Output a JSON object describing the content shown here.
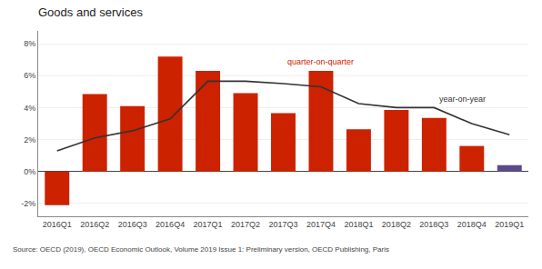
{
  "chart_data": {
    "type": "bar",
    "title": "Goods and services",
    "categories": [
      "2016Q1",
      "2016Q2",
      "2016Q3",
      "2016Q4",
      "2017Q1",
      "2017Q2",
      "2017Q3",
      "2017Q4",
      "2018Q1",
      "2018Q2",
      "2018Q3",
      "2018Q4",
      "2019Q1"
    ],
    "series": [
      {
        "name": "quarter-on-quarter",
        "type": "bar",
        "color": "#cc2200",
        "colors": [
          "#cc2200",
          "#cc2200",
          "#cc2200",
          "#cc2200",
          "#cc2200",
          "#cc2200",
          "#cc2200",
          "#cc2200",
          "#cc2200",
          "#cc2200",
          "#cc2200",
          "#cc2200",
          "#5b4a8a"
        ],
        "values": [
          -2.1,
          4.85,
          4.1,
          7.2,
          6.3,
          4.9,
          3.65,
          6.3,
          2.65,
          3.85,
          3.35,
          1.6,
          0.4
        ]
      },
      {
        "name": "year-on-year",
        "type": "line",
        "color": "#333333",
        "values": [
          1.3,
          2.1,
          2.55,
          3.3,
          5.65,
          5.65,
          5.5,
          5.3,
          4.25,
          4.0,
          4.0,
          3.0,
          2.3
        ]
      }
    ],
    "ylim": [
      -2.8,
      8.8
    ],
    "yticks": [
      {
        "value": -2,
        "label": "-2%"
      },
      {
        "value": 0,
        "label": "0%"
      },
      {
        "value": 2,
        "label": "2%"
      },
      {
        "value": 4,
        "label": "4%"
      },
      {
        "value": 6,
        "label": "6%"
      },
      {
        "value": 8,
        "label": "8%"
      }
    ],
    "grid": true,
    "annotations": [
      "Source: OECD (2019), OECD Economic Outlook, Volume 2019 Issue 1: Preliminary version, OECD Publishing, Paris"
    ]
  }
}
